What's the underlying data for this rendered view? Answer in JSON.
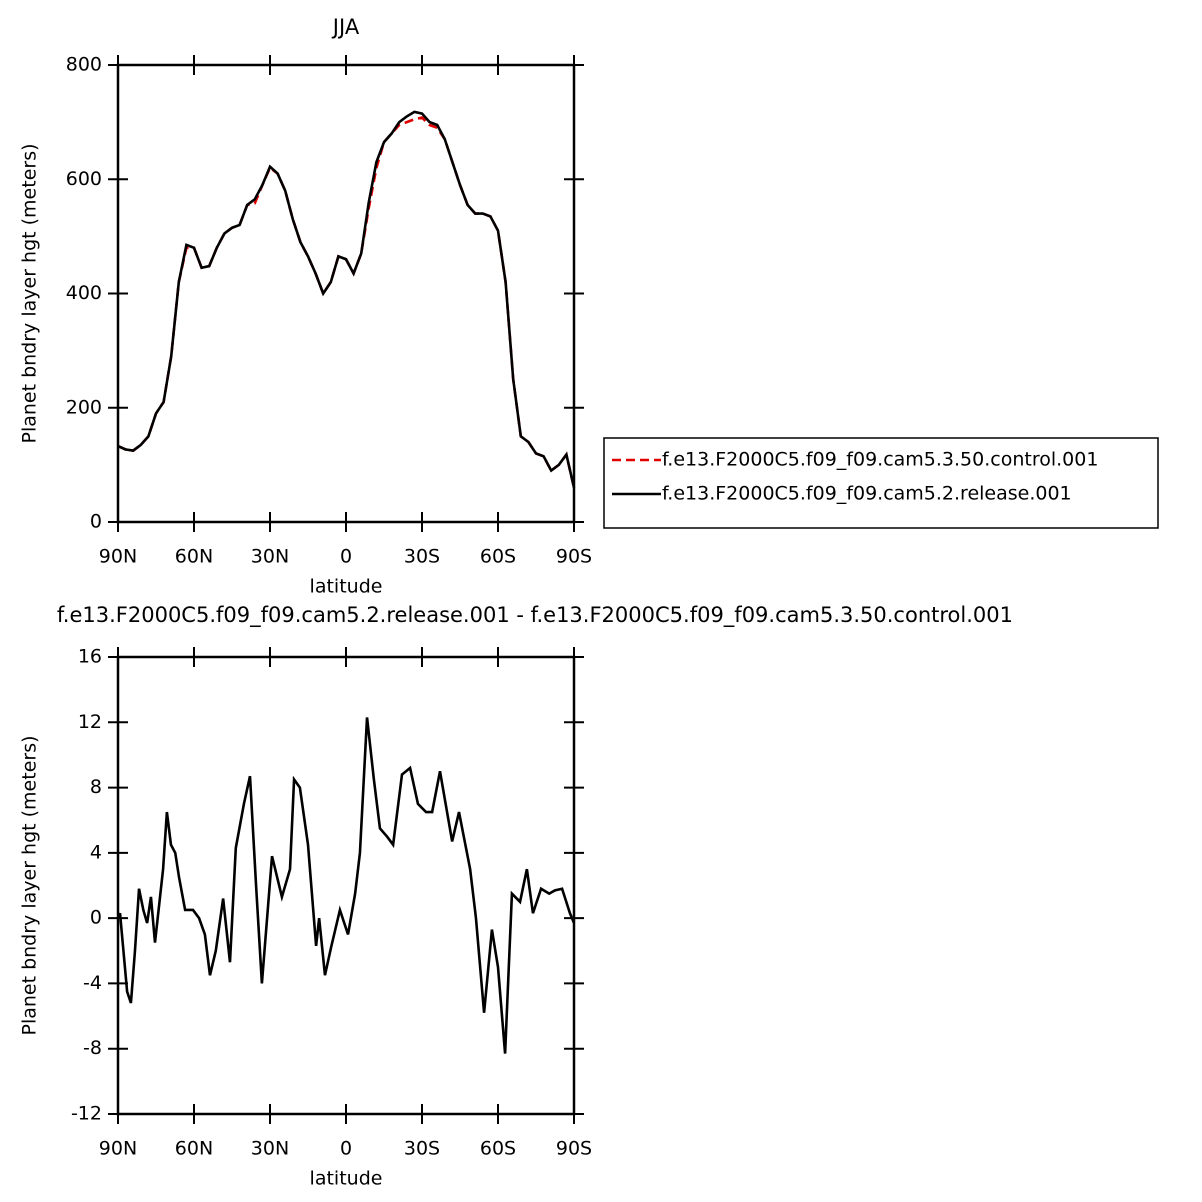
{
  "chart_data": [
    {
      "type": "line",
      "title": "JJA",
      "x_label": "latitude",
      "y_label": "Planet bndry layer hgt (meters)",
      "xlim": [
        90,
        -90
      ],
      "xticks": [
        {
          "value": 90,
          "label": "90N"
        },
        {
          "value": 60,
          "label": "60N"
        },
        {
          "value": 30,
          "label": "30N"
        },
        0,
        {
          "value": -30,
          "label": "30S"
        },
        {
          "value": -60,
          "label": "60S"
        },
        {
          "value": -90,
          "label": "90S"
        }
      ],
      "ylim": [
        0,
        800
      ],
      "yticks": [
        0,
        200,
        400,
        600,
        800
      ],
      "legend": "right",
      "x": [
        90,
        87,
        84,
        81,
        78,
        75,
        72,
        69,
        66,
        63,
        60,
        57,
        54,
        51,
        48,
        45,
        42,
        39,
        36,
        33,
        30,
        27,
        24,
        21,
        18,
        15,
        12,
        9,
        6,
        3,
        0,
        -3,
        -6,
        -9,
        -12,
        -15,
        -18,
        -21,
        -24,
        -27,
        -30,
        -33,
        -36,
        -39,
        -42,
        -45,
        -48,
        -51,
        -54,
        -57,
        -60,
        -63,
        -66,
        -69,
        -72,
        -75,
        -78,
        -81,
        -84,
        -87,
        -90
      ],
      "series": [
        {
          "name": "f.e13.F2000C5.f09_f09.cam5.3.50.control.001",
          "color": "#e00000",
          "linestyle": "dashed",
          "values": [
            133,
            127,
            125,
            135,
            150,
            190,
            210,
            290,
            420,
            480,
            480,
            445,
            448,
            480,
            505,
            515,
            520,
            555,
            558,
            590,
            620,
            610,
            580,
            530,
            490,
            465,
            435,
            400,
            420,
            465,
            460,
            435,
            470,
            550,
            620,
            665,
            680,
            695,
            700,
            705,
            708,
            695,
            690,
            670,
            630,
            590,
            555,
            540,
            540,
            535,
            510,
            420,
            250,
            150,
            140,
            120,
            115,
            90,
            100,
            118,
            60
          ]
        },
        {
          "name": "f.e13.F2000C5.f09_f09.cam5.2.release.001",
          "color": "#000000",
          "linestyle": "solid",
          "values": [
            133,
            127,
            125,
            135,
            150,
            190,
            210,
            290,
            420,
            485,
            480,
            445,
            448,
            480,
            505,
            515,
            520,
            555,
            565,
            590,
            622,
            610,
            580,
            530,
            490,
            465,
            435,
            400,
            420,
            465,
            460,
            435,
            470,
            560,
            630,
            665,
            680,
            700,
            710,
            718,
            715,
            700,
            695,
            670,
            630,
            590,
            555,
            540,
            540,
            535,
            510,
            420,
            250,
            150,
            140,
            120,
            115,
            90,
            100,
            118,
            60
          ]
        }
      ]
    },
    {
      "type": "line",
      "title": "f.e13.F2000C5.f09_f09.cam5.2.release.001 - f.e13.F2000C5.f09_f09.cam5.3.50.control.001",
      "x_label": "latitude",
      "y_label": "Planet bndry layer hgt (meters)",
      "xlim": [
        90,
        -90
      ],
      "xticks": [
        {
          "value": 90,
          "label": "90N"
        },
        {
          "value": 60,
          "label": "60N"
        },
        {
          "value": 30,
          "label": "30N"
        },
        0,
        {
          "value": -30,
          "label": "30S"
        },
        {
          "value": -60,
          "label": "60S"
        },
        {
          "value": -90,
          "label": "90S"
        }
      ],
      "ylim": [
        -12,
        16
      ],
      "yticks": [
        -12,
        -8,
        -4,
        0,
        4,
        8,
        12,
        16
      ],
      "x": [
        90,
        89.2,
        86.4,
        84.9,
        83.3,
        81.7,
        80,
        78.5,
        77,
        75.4,
        72.2,
        70.7,
        69.1,
        67.4,
        65.9,
        63.5,
        60.4,
        58,
        55.7,
        53.7,
        51.4,
        48.5,
        45.8,
        43.5,
        40.3,
        37.9,
        35.5,
        33.2,
        29.2,
        25.3,
        22.1,
        20.5,
        18.2,
        15,
        11.8,
        10.6,
        8.3,
        5.9,
        2.4,
        -0.8,
        -3.6,
        -5.5,
        -8.3,
        -11,
        -13.4,
        -16.2,
        -18.6,
        -22.1,
        -25.3,
        -28.4,
        -31.6,
        -34,
        -37.1,
        -41.9,
        -44.6,
        -49,
        -51.3,
        -54.5,
        -57.6,
        -60,
        -62.8,
        -65.5,
        -68.7,
        -71.4,
        -73.8,
        -77,
        -80.2,
        -82.5,
        -85.3,
        -88.4,
        -90
      ],
      "series": [
        {
          "color": "#000000",
          "linestyle": "solid",
          "values": [
            0,
            0.3,
            -4.5,
            -5.2,
            -2,
            1.8,
            0.5,
            -0.3,
            1.3,
            -1.5,
            3,
            6.5,
            4.5,
            4,
            2.5,
            0.5,
            0.5,
            0,
            -1,
            -3.5,
            -2,
            1.2,
            -2.7,
            4.3,
            7,
            8.7,
            2,
            -4,
            3.8,
            1.3,
            3,
            8.5,
            8,
            4.5,
            -1.7,
            0,
            -3.5,
            -1.8,
            0.5,
            -1,
            1.5,
            4,
            12.3,
            8.5,
            5.5,
            5,
            4.5,
            8.8,
            9.2,
            7,
            6.5,
            6.5,
            9,
            4.7,
            6.5,
            3,
            0,
            -5.8,
            -0.7,
            -3,
            -8.3,
            1.5,
            1,
            3,
            0.3,
            1.8,
            1.5,
            1.7,
            1.8,
            0.3,
            -0.3
          ]
        }
      ]
    }
  ]
}
